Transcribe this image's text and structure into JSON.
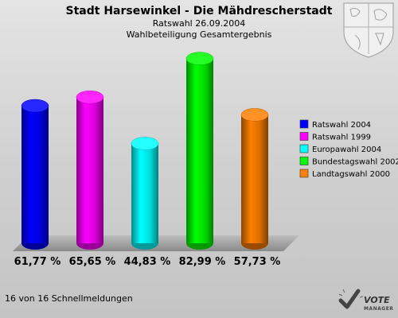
{
  "header": {
    "title": "Stadt Harsewinkel - Die Mähdrescherstadt",
    "subtitle1": "Ratswahl 26.09.2004",
    "subtitle2": "Wahlbeteiligung Gesamtergebnis"
  },
  "chart_data": {
    "type": "bar",
    "categories": [
      "Ratswahl 2004",
      "Ratswahl 1999",
      "Europawahl 2004",
      "Bundestagswahl 2002",
      "Landtagswahl 2000"
    ],
    "values": [
      61.77,
      65.65,
      44.83,
      82.99,
      57.73
    ],
    "value_labels": [
      "61,77 %",
      "65,65 %",
      "44,83 %",
      "82,99 %",
      "57,73 %"
    ],
    "colors": [
      "#0000ff",
      "#ff00ff",
      "#00ffff",
      "#00ff00",
      "#ff7f00"
    ],
    "ylim": [
      0,
      85
    ],
    "legend_position": "right",
    "bar_shape": "cylinder"
  },
  "legend": {
    "items": [
      "Ratswahl 2004",
      "Ratswahl 1999",
      "Europawahl 2004",
      "Bundestagswahl 2002",
      "Landtagswahl 2000"
    ]
  },
  "footer": {
    "status": "16 von 16 Schnellmeldungen"
  },
  "branding": {
    "logo_word": "VOTE",
    "logo_sub": "MANAGER",
    "crest_icon": "nrw-coat-of-arms-icon"
  }
}
